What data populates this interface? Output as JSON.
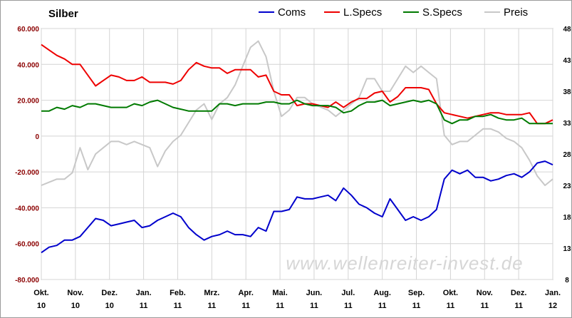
{
  "chart_data": {
    "type": "line",
    "title": "Silber",
    "watermark": "www.wellenreiter-invest.de",
    "x_labels": [
      {
        "month": "Okt.",
        "year": "10"
      },
      {
        "month": "Nov.",
        "year": "10"
      },
      {
        "month": "Dez.",
        "year": "10"
      },
      {
        "month": "Jan.",
        "year": "11"
      },
      {
        "month": "Feb.",
        "year": "11"
      },
      {
        "month": "Mrz.",
        "year": "11"
      },
      {
        "month": "Apr.",
        "year": "11"
      },
      {
        "month": "Mai.",
        "year": "11"
      },
      {
        "month": "Jun.",
        "year": "11"
      },
      {
        "month": "Jul.",
        "year": "11"
      },
      {
        "month": "Aug.",
        "year": "11"
      },
      {
        "month": "Sep.",
        "year": "11"
      },
      {
        "month": "Okt.",
        "year": "11"
      },
      {
        "month": "Nov.",
        "year": "11"
      },
      {
        "month": "Dez.",
        "year": "11"
      },
      {
        "month": "Jan.",
        "year": "12"
      }
    ],
    "y_left": {
      "range": [
        -80000,
        60000
      ],
      "ticks": [
        -80000,
        -60000,
        -40000,
        -20000,
        0,
        20000,
        40000,
        60000
      ],
      "tick_labels": [
        "-80.000",
        "-60.000",
        "-40.000",
        "-20.000",
        "0",
        "20.000",
        "40.000",
        "60.000"
      ],
      "tick_color": "#8b0000"
    },
    "y_right": {
      "range": [
        8,
        48
      ],
      "ticks": [
        8,
        13,
        18,
        23,
        28,
        33,
        38,
        43,
        48
      ],
      "tick_labels": [
        "8",
        "13",
        "18",
        "23",
        "28",
        "33",
        "38",
        "43",
        "48"
      ]
    },
    "grid": true,
    "legend_position": "top",
    "series": [
      {
        "name": "Coms",
        "color": "#0000cc",
        "axis": "left",
        "values": [
          -65000,
          -62000,
          -61000,
          -58000,
          -58000,
          -56000,
          -51000,
          -46000,
          -47000,
          -50000,
          -49000,
          -48000,
          -47000,
          -51000,
          -50000,
          -47000,
          -45000,
          -43000,
          -45000,
          -51000,
          -55000,
          -58000,
          -56000,
          -55000,
          -53000,
          -55000,
          -55000,
          -56000,
          -51000,
          -53000,
          -42000,
          -42000,
          -41000,
          -34000,
          -35000,
          -35000,
          -34000,
          -33000,
          -36000,
          -29000,
          -33000,
          -38000,
          -40000,
          -43000,
          -45000,
          -35000,
          -41000,
          -47000,
          -45000,
          -47000,
          -45000,
          -41000,
          -24000,
          -19000,
          -21000,
          -19000,
          -23000,
          -23000,
          -25000,
          -24000,
          -22000,
          -21000,
          -23000,
          -20000,
          -15000,
          -14000,
          -16000
        ]
      },
      {
        "name": "L.Specs",
        "color": "#ee0000",
        "axis": "left",
        "values": [
          51000,
          48000,
          45000,
          43000,
          40000,
          40000,
          34000,
          28000,
          31000,
          34000,
          33000,
          31000,
          31000,
          33000,
          30000,
          30000,
          30000,
          29000,
          31000,
          37000,
          41000,
          39000,
          38000,
          38000,
          35000,
          37000,
          37000,
          37000,
          33000,
          34000,
          25000,
          23000,
          23000,
          17000,
          18000,
          18000,
          17000,
          16000,
          19000,
          16000,
          19000,
          21000,
          21000,
          24000,
          25000,
          19000,
          22000,
          27000,
          27000,
          27000,
          26000,
          18000,
          13000,
          12000,
          11000,
          10000,
          11000,
          12000,
          13000,
          13000,
          12000,
          12000,
          12000,
          13000,
          7000,
          7000,
          9000
        ]
      },
      {
        "name": "S.Specs",
        "color": "#007a00",
        "axis": "left",
        "values": [
          14000,
          14000,
          16000,
          15000,
          17000,
          16000,
          18000,
          18000,
          17000,
          16000,
          16000,
          16000,
          18000,
          17000,
          19000,
          20000,
          18000,
          16000,
          15000,
          14000,
          14000,
          14000,
          14000,
          18000,
          18000,
          17000,
          18000,
          18000,
          18000,
          19000,
          19000,
          18000,
          18000,
          20000,
          18000,
          17000,
          17000,
          17000,
          16000,
          13000,
          14000,
          17000,
          19000,
          19000,
          20000,
          17000,
          18000,
          19000,
          20000,
          19000,
          20000,
          18000,
          9000,
          7000,
          9000,
          9000,
          11000,
          11000,
          12000,
          10000,
          9000,
          9000,
          10000,
          7000,
          7000,
          7000,
          7000
        ]
      },
      {
        "name": "Preis",
        "color": "#c8c8c8",
        "axis": "right",
        "values": [
          23,
          23.5,
          24,
          24,
          25,
          29,
          25.5,
          28,
          29,
          30,
          30,
          29.5,
          30,
          29.5,
          29,
          26,
          28.5,
          30,
          31,
          33,
          35,
          36,
          33.5,
          36,
          37,
          39,
          42,
          45,
          46,
          43.5,
          38,
          34,
          35,
          37,
          37,
          36,
          35.5,
          35,
          34,
          35,
          36,
          37,
          40,
          40,
          38,
          38,
          40,
          42,
          41,
          42,
          41,
          40,
          31,
          29.5,
          30,
          30,
          31,
          32,
          32,
          31.5,
          30.5,
          30,
          29,
          27,
          24.5,
          23,
          24
        ]
      }
    ]
  }
}
